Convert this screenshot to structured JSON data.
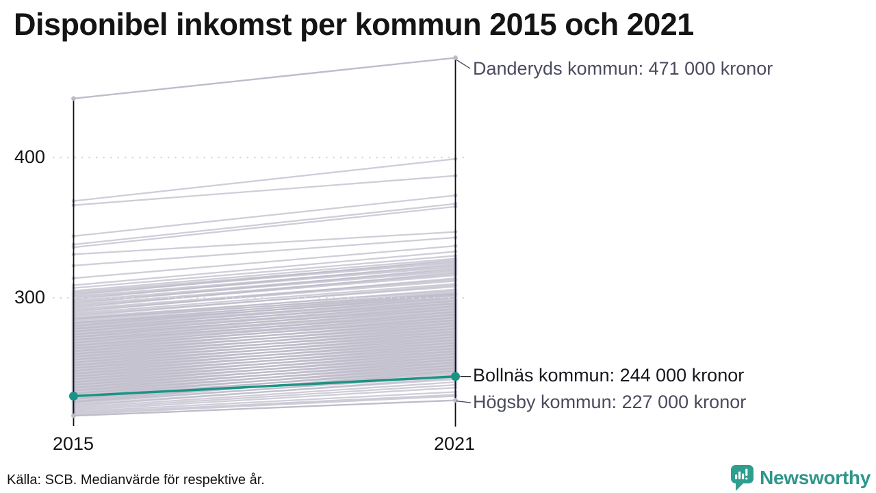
{
  "title": "Disponibel inkomst per kommun 2015 och 2021",
  "axes": {
    "y_ticks": [
      "400",
      "300"
    ],
    "x_ticks": [
      "2015",
      "2021"
    ]
  },
  "annotations": {
    "danderyd": "Danderyds kommun: 471 000 kronor",
    "bollnas": "Bollnäs kommun: 244 000 kronor",
    "hogsby": "Högsby kommun: 227 000 kronor"
  },
  "footer": {
    "source_note": "Källa: SCB. Medianvärde för respektive år."
  },
  "branding": {
    "wordmark": "Newsworthy",
    "logo_icon": "newsworthy-speech-bubble-bar-chart-icon",
    "brand_color": "#2f968a"
  },
  "chart_data": {
    "type": "line",
    "subtype": "slopegraph",
    "title": "Disponibel inkomst per kommun 2015 och 2021",
    "x_categories": [
      "2015",
      "2021"
    ],
    "y_tick_values": [
      400,
      300
    ],
    "y_unit": "000 kronor (tusen kronor)",
    "ylim": [
      210,
      480
    ],
    "grid": "dotted horizontal lines at y ticks",
    "legend_position": "none",
    "colors": {
      "highlight": "#1b9384",
      "background_line": "#bcb9c8",
      "axis": "#111111",
      "grid": "#d9d9de",
      "annotation_text": "#4b4b5f",
      "highlight_text": "#17171d"
    },
    "named_series": [
      {
        "name": "Danderyds kommun",
        "v2015": 442,
        "v2021": 471,
        "highlighted": false,
        "label": "Danderyds kommun: 471 000 kronor"
      },
      {
        "name": "Bollnäs kommun",
        "v2015": 230,
        "v2021": 244,
        "highlighted": true,
        "label": "Bollnäs kommun: 244 000 kronor"
      },
      {
        "name": "Högsby kommun",
        "v2015": 216,
        "v2021": 227,
        "highlighted": false,
        "label": "Högsby kommun: 227 000 kronor"
      }
    ],
    "background_lines": [
      [
        369,
        399
      ],
      [
        366,
        387
      ],
      [
        344,
        373
      ],
      [
        338,
        367
      ],
      [
        336,
        365
      ],
      [
        331,
        347
      ],
      [
        323,
        343
      ],
      [
        314,
        337
      ],
      [
        309,
        333
      ],
      [
        307,
        330
      ],
      [
        305,
        328
      ],
      [
        304,
        326
      ],
      [
        303,
        325
      ],
      [
        302,
        327
      ],
      [
        301,
        323
      ],
      [
        300,
        322
      ],
      [
        299,
        324
      ],
      [
        298,
        320
      ],
      [
        297,
        319
      ],
      [
        296,
        321
      ],
      [
        295,
        317
      ],
      [
        294,
        316
      ],
      [
        293,
        318
      ],
      [
        292,
        313
      ],
      [
        291,
        312
      ],
      [
        290,
        314
      ],
      [
        289,
        310
      ],
      [
        288,
        308
      ],
      [
        287,
        309
      ],
      [
        286,
        305
      ],
      [
        285,
        306
      ],
      [
        285,
        303
      ],
      [
        284,
        304
      ],
      [
        283,
        302
      ],
      [
        282,
        303
      ],
      [
        282,
        300
      ],
      [
        281,
        301
      ],
      [
        280,
        299
      ],
      [
        280,
        302
      ],
      [
        279,
        298
      ],
      [
        278,
        300
      ],
      [
        278,
        296
      ],
      [
        277,
        297
      ],
      [
        276,
        295
      ],
      [
        276,
        298
      ],
      [
        275,
        294
      ],
      [
        274,
        296
      ],
      [
        274,
        292
      ],
      [
        273,
        293
      ],
      [
        272,
        291
      ],
      [
        272,
        294
      ],
      [
        271,
        290
      ],
      [
        270,
        292
      ],
      [
        270,
        288
      ],
      [
        269,
        289
      ],
      [
        268,
        287
      ],
      [
        268,
        290
      ],
      [
        267,
        286
      ],
      [
        266,
        288
      ],
      [
        266,
        284
      ],
      [
        265,
        285
      ],
      [
        264,
        286
      ],
      [
        264,
        282
      ],
      [
        263,
        283
      ],
      [
        262,
        284
      ],
      [
        262,
        280
      ],
      [
        261,
        281
      ],
      [
        260,
        282
      ],
      [
        260,
        278
      ],
      [
        259,
        279
      ],
      [
        258,
        280
      ],
      [
        258,
        276
      ],
      [
        257,
        277
      ],
      [
        256,
        278
      ],
      [
        256,
        274
      ],
      [
        255,
        275
      ],
      [
        254,
        276
      ],
      [
        254,
        272
      ],
      [
        253,
        273
      ],
      [
        252,
        274
      ],
      [
        252,
        270
      ],
      [
        251,
        271
      ],
      [
        250,
        272
      ],
      [
        250,
        268
      ],
      [
        249,
        269
      ],
      [
        248,
        270
      ],
      [
        248,
        266
      ],
      [
        247,
        267
      ],
      [
        246,
        268
      ],
      [
        246,
        264
      ],
      [
        245,
        265
      ],
      [
        244,
        266
      ],
      [
        244,
        262
      ],
      [
        243,
        263
      ],
      [
        242,
        264
      ],
      [
        242,
        260
      ],
      [
        241,
        261
      ],
      [
        240,
        262
      ],
      [
        240,
        258
      ],
      [
        239,
        259
      ],
      [
        238,
        260
      ],
      [
        238,
        256
      ],
      [
        237,
        257
      ],
      [
        236,
        258
      ],
      [
        236,
        254
      ],
      [
        235,
        255
      ],
      [
        234,
        256
      ],
      [
        234,
        252
      ],
      [
        233,
        253
      ],
      [
        232,
        254
      ],
      [
        232,
        250
      ],
      [
        231,
        251
      ],
      [
        230,
        252
      ],
      [
        230,
        248
      ],
      [
        229,
        249
      ],
      [
        228,
        250
      ],
      [
        228,
        246
      ],
      [
        227,
        247
      ],
      [
        226,
        248
      ],
      [
        226,
        244
      ],
      [
        225,
        245
      ],
      [
        224,
        242
      ],
      [
        223,
        243
      ],
      [
        222,
        240
      ],
      [
        221,
        238
      ],
      [
        220,
        236
      ],
      [
        219,
        233
      ],
      [
        218,
        231
      ],
      [
        217,
        230
      ]
    ]
  }
}
